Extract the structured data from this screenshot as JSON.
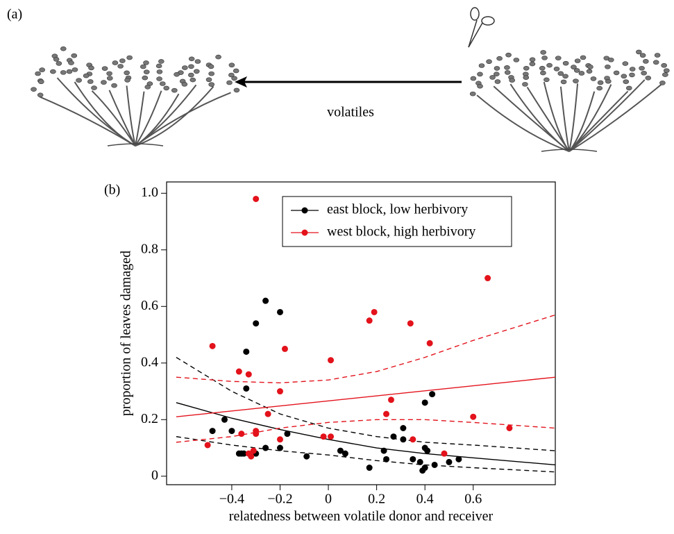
{
  "panel_a": {
    "label": "(a)",
    "arrow_label": "volatiles"
  },
  "chart_data": {
    "type": "scatter",
    "panel_label": "(b)",
    "x_label": "relatedness between volatile donor and receiver",
    "y_label": "proportion of leaves damaged",
    "xlim": [
      -0.67,
      0.94
    ],
    "ylim": [
      -0.03,
      1.04
    ],
    "xticks": [
      {
        "value": -0.4,
        "label": "−0.4"
      },
      {
        "value": -0.2,
        "label": "−0.2"
      },
      0,
      0.2,
      0.4,
      0.6
    ],
    "yticks": [
      0,
      0.2,
      0.4,
      0.6,
      0.8,
      {
        "value": 1.0,
        "label": "1.0"
      }
    ],
    "legend": "top-right",
    "series": [
      {
        "name": "east block, low herbivory",
        "color": "#000000",
        "x": [
          -0.48,
          -0.43,
          -0.4,
          -0.37,
          -0.36,
          -0.35,
          -0.34,
          -0.34,
          -0.3,
          -0.3,
          -0.26,
          -0.26,
          -0.2,
          -0.2,
          -0.17,
          -0.09,
          0.05,
          0.07,
          0.17,
          0.23,
          0.24,
          0.27,
          0.31,
          0.31,
          0.35,
          0.38,
          0.39,
          0.4,
          0.4,
          0.41,
          0.4,
          0.43,
          0.44,
          0.5,
          0.54
        ],
        "values": [
          0.16,
          0.2,
          0.16,
          0.08,
          0.08,
          0.08,
          0.44,
          0.31,
          0.54,
          0.08,
          0.62,
          0.1,
          0.58,
          0.1,
          0.15,
          0.07,
          0.09,
          0.08,
          0.03,
          0.09,
          0.06,
          0.14,
          0.17,
          0.13,
          0.06,
          0.05,
          0.02,
          0.03,
          0.1,
          0.09,
          0.26,
          0.29,
          0.04,
          0.05,
          0.06
        ]
      },
      {
        "name": "west block, high herbivory",
        "color": "#e3121b",
        "x": [
          -0.5,
          -0.48,
          -0.37,
          -0.36,
          -0.33,
          -0.33,
          -0.32,
          -0.3,
          -0.3,
          -0.3,
          -0.31,
          -0.25,
          -0.2,
          -0.2,
          -0.18,
          -0.02,
          0.01,
          0.01,
          0.17,
          0.19,
          0.24,
          0.26,
          0.34,
          0.35,
          0.42,
          0.48,
          0.6,
          0.66,
          0.75
        ],
        "values": [
          0.11,
          0.46,
          0.37,
          0.15,
          0.36,
          0.08,
          0.07,
          0.98,
          0.16,
          0.15,
          0.09,
          0.22,
          0.3,
          0.13,
          0.45,
          0.14,
          0.14,
          0.41,
          0.55,
          0.58,
          0.22,
          0.27,
          0.54,
          0.13,
          0.47,
          0.08,
          0.21,
          0.7,
          0.17
        ]
      }
    ],
    "fits": [
      {
        "color": "#000000",
        "dashed": false,
        "x": [
          -0.63,
          -0.4,
          -0.2,
          0,
          0.2,
          0.4,
          0.6,
          0.94
        ],
        "values": [
          0.26,
          0.205,
          0.165,
          0.13,
          0.1,
          0.08,
          0.065,
          0.04
        ]
      },
      {
        "color": "#000000",
        "dashed": true,
        "x": [
          -0.63,
          -0.4,
          -0.2,
          0,
          0.2,
          0.4,
          0.6,
          0.94
        ],
        "values": [
          0.42,
          0.3,
          0.22,
          0.17,
          0.14,
          0.12,
          0.11,
          0.09
        ]
      },
      {
        "color": "#000000",
        "dashed": true,
        "x": [
          -0.63,
          -0.4,
          -0.2,
          0,
          0.2,
          0.4,
          0.6,
          0.94
        ],
        "values": [
          0.14,
          0.11,
          0.09,
          0.075,
          0.055,
          0.04,
          0.03,
          0.015
        ]
      },
      {
        "color": "#e3121b",
        "dashed": false,
        "x": [
          -0.63,
          0.94
        ],
        "values": [
          0.21,
          0.35
        ]
      },
      {
        "color": "#e3121b",
        "dashed": true,
        "x": [
          -0.63,
          -0.4,
          -0.2,
          0,
          0.2,
          0.4,
          0.6,
          0.94
        ],
        "values": [
          0.35,
          0.335,
          0.33,
          0.34,
          0.37,
          0.42,
          0.48,
          0.57
        ]
      },
      {
        "color": "#e3121b",
        "dashed": true,
        "x": [
          -0.63,
          -0.4,
          -0.2,
          0,
          0.2,
          0.4,
          0.6,
          0.94
        ],
        "values": [
          0.12,
          0.14,
          0.17,
          0.19,
          0.2,
          0.2,
          0.19,
          0.17
        ]
      }
    ]
  }
}
